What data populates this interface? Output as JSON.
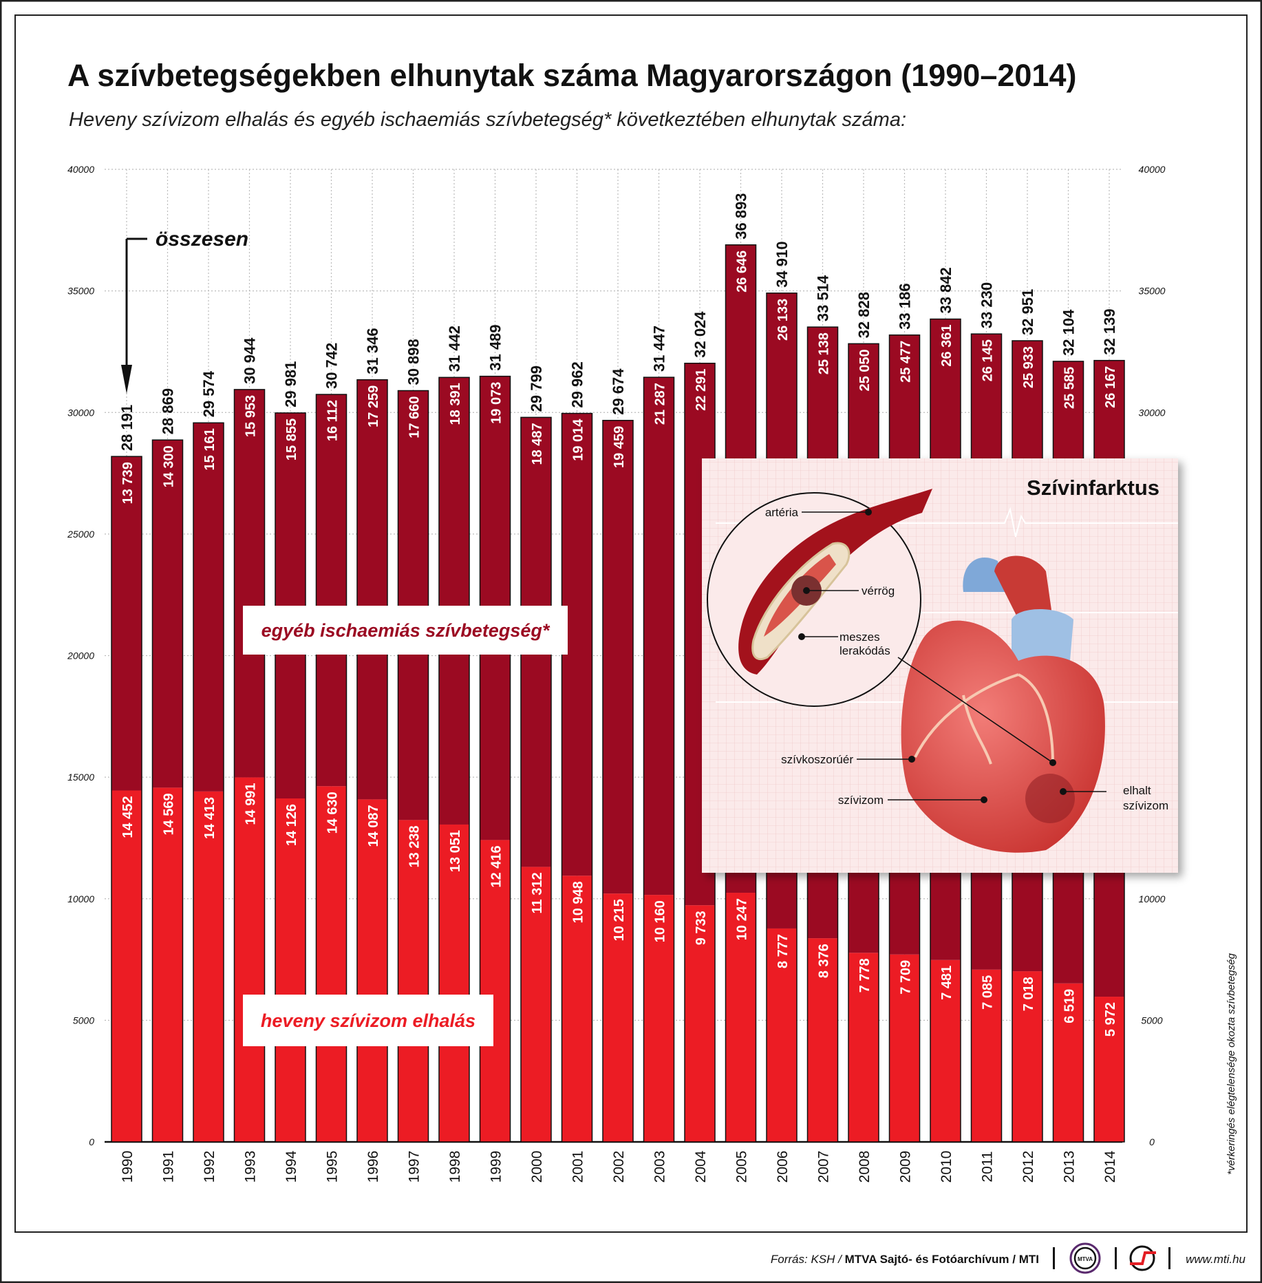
{
  "title": "A szívbetegségekben elhunytak száma Magyarországon (1990–2014)",
  "subtitle": "Heveny szívizom elhalás és egyéb ischaemiás szívbetegség* következtében elhunytak száma:",
  "colors": {
    "acute": "#ec1c24",
    "other": "#9b0a22",
    "frame": "#222222"
  },
  "chart_data": {
    "type": "bar",
    "stacked": true,
    "categories": [
      "1990",
      "1991",
      "1992",
      "1993",
      "1994",
      "1995",
      "1996",
      "1997",
      "1998",
      "1999",
      "2000",
      "2001",
      "2002",
      "2003",
      "2004",
      "2005",
      "2006",
      "2007",
      "2008",
      "2009",
      "2010",
      "2011",
      "2012",
      "2013",
      "2014"
    ],
    "series": [
      {
        "name": "heveny szívizom elhalás",
        "values": [
          14452,
          14569,
          14413,
          14991,
          14126,
          14630,
          14087,
          13238,
          13051,
          12416,
          11312,
          10948,
          10215,
          10160,
          9733,
          10247,
          8777,
          8376,
          7778,
          7709,
          7481,
          7085,
          7018,
          6519,
          5972
        ]
      },
      {
        "name": "egyéb ischaemiás szívbetegség*",
        "values": [
          13739,
          14300,
          15161,
          15953,
          15855,
          16112,
          17259,
          17660,
          18391,
          19073,
          18487,
          19014,
          19459,
          21287,
          22291,
          26646,
          26133,
          25138,
          25050,
          25477,
          26361,
          26145,
          25933,
          25585,
          26167
        ]
      }
    ],
    "totals_label": "összesen",
    "totals": [
      28191,
      28869,
      29574,
      30944,
      29981,
      30742,
      31346,
      30898,
      31442,
      31489,
      29799,
      29962,
      29674,
      31447,
      32024,
      36893,
      34910,
      33514,
      32828,
      33186,
      33842,
      33230,
      32951,
      32104,
      32139
    ],
    "yticks": [
      "0",
      "5000",
      "10000",
      "15000",
      "20000",
      "25000",
      "30000",
      "35000",
      "40000"
    ],
    "ylim": [
      0,
      40000
    ],
    "grid": true,
    "legend_placement": "inside-left"
  },
  "inset": {
    "title": "Szívinfarktus",
    "labels": {
      "arteria": "artéria",
      "verrog": "vérrög",
      "meszes1": "meszes",
      "meszes2": "lerakódás",
      "szivkoszoruer": "szívkoszorúér",
      "szivizom": "szívizom",
      "elhalt1": "elhalt",
      "elhalt2": "szívizom"
    }
  },
  "footnote": "*vérkeringés elégtelensége okozta szívbetegség",
  "footer": {
    "source_prefix": "Forrás: KSH / ",
    "source_bold": "MTVA Sajtó- és Fotóarchívum / MTI",
    "logo1": "MTVA",
    "url": "www.mti.hu"
  }
}
